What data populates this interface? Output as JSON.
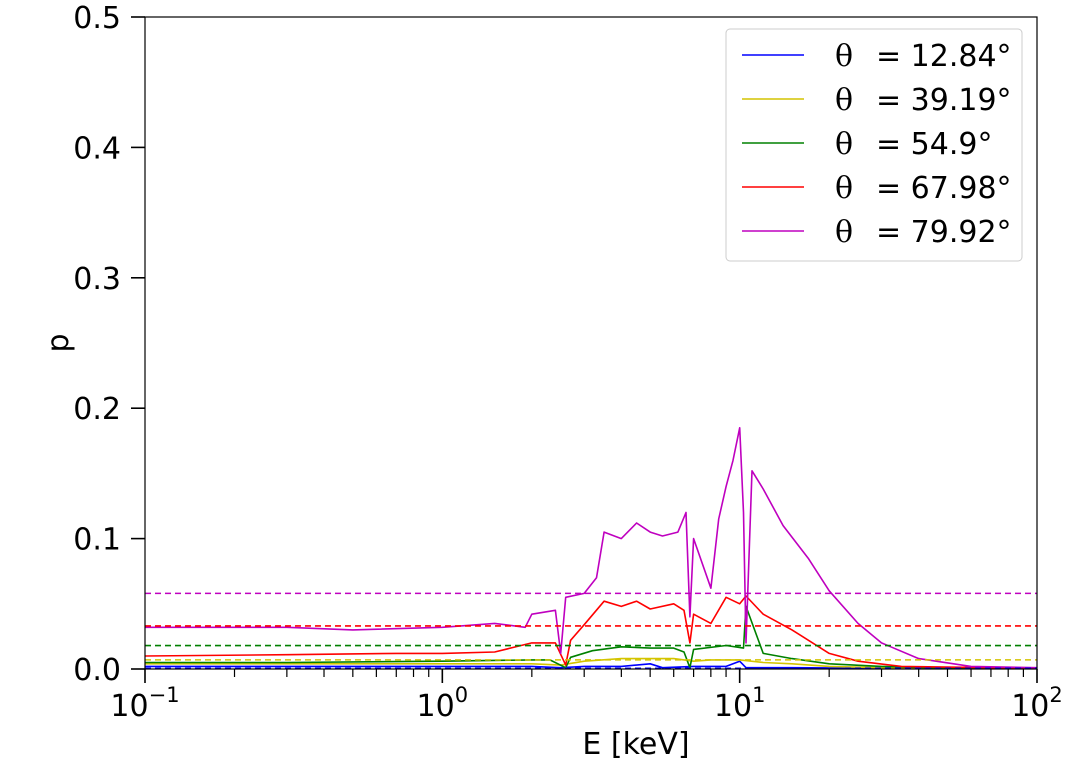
{
  "chart_data": {
    "type": "line",
    "xlabel": "E [keV]",
    "ylabel": "p",
    "xscale": "log",
    "xlim": [
      0.1,
      100
    ],
    "ylim": [
      0,
      0.5
    ],
    "grid": false,
    "legend_position": "top-right",
    "x_ticks": [
      {
        "value": 0.1,
        "base": "10",
        "exp": "−1"
      },
      {
        "value": 1,
        "base": "10",
        "exp": "0"
      },
      {
        "value": 10,
        "base": "10",
        "exp": "1"
      },
      {
        "value": 100,
        "base": "10",
        "exp": "2"
      }
    ],
    "y_ticks": [
      {
        "value": 0.0,
        "label": "0.0"
      },
      {
        "value": 0.1,
        "label": "0.1"
      },
      {
        "value": 0.2,
        "label": "0.2"
      },
      {
        "value": 0.3,
        "label": "0.3"
      },
      {
        "value": 0.4,
        "label": "0.4"
      },
      {
        "value": 0.5,
        "label": "0.5"
      }
    ],
    "series": [
      {
        "name": "θ = 12.84°",
        "legend_symbol": "θ",
        "legend_value": "= 12.84°",
        "color": "#0000ff",
        "mean_level": 0.0005,
        "points": [
          [
            0.1,
            0.002
          ],
          [
            0.2,
            0.002
          ],
          [
            0.5,
            0.002
          ],
          [
            1,
            0.002
          ],
          [
            2,
            0.002
          ],
          [
            2.5,
            0.001
          ],
          [
            3,
            0.002
          ],
          [
            4,
            0.002
          ],
          [
            5,
            0.004
          ],
          [
            5.5,
            0.001
          ],
          [
            7,
            0.002
          ],
          [
            9,
            0.002
          ],
          [
            10,
            0.006
          ],
          [
            10.5,
            0.001
          ],
          [
            15,
            0.001
          ],
          [
            30,
            0.0005
          ],
          [
            100,
            0.0005
          ]
        ]
      },
      {
        "name": "θ = 39.19°",
        "legend_symbol": "θ",
        "legend_value": "= 39.19°",
        "color": "#d4c400",
        "mean_level": 0.007,
        "points": [
          [
            0.1,
            0.004
          ],
          [
            0.3,
            0.004
          ],
          [
            1,
            0.004
          ],
          [
            2,
            0.004
          ],
          [
            2.5,
            0.003
          ],
          [
            3,
            0.006
          ],
          [
            4,
            0.008
          ],
          [
            5,
            0.008
          ],
          [
            6,
            0.008
          ],
          [
            7,
            0.006
          ],
          [
            8,
            0.007
          ],
          [
            10,
            0.007
          ],
          [
            12,
            0.005
          ],
          [
            15,
            0.004
          ],
          [
            20,
            0.002
          ],
          [
            30,
            0.001
          ],
          [
            100,
            0.0005
          ]
        ]
      },
      {
        "name": "θ = 54.9°",
        "legend_symbol": "θ",
        "legend_value": "= 54.9°",
        "color": "#008000",
        "mean_level": 0.018,
        "points": [
          [
            0.1,
            0.005
          ],
          [
            0.3,
            0.005
          ],
          [
            1,
            0.006
          ],
          [
            2,
            0.007
          ],
          [
            2.3,
            0.007
          ],
          [
            2.6,
            0.001
          ],
          [
            2.7,
            0.009
          ],
          [
            3.2,
            0.014
          ],
          [
            4,
            0.017
          ],
          [
            5,
            0.016
          ],
          [
            6,
            0.016
          ],
          [
            6.5,
            0.013
          ],
          [
            6.8,
            0.001
          ],
          [
            7,
            0.015
          ],
          [
            9,
            0.018
          ],
          [
            10.3,
            0.016
          ],
          [
            10.5,
            0.048
          ],
          [
            12,
            0.012
          ],
          [
            15,
            0.008
          ],
          [
            20,
            0.004
          ],
          [
            30,
            0.002
          ],
          [
            50,
            0.0005
          ],
          [
            100,
            0.0005
          ]
        ]
      },
      {
        "name": "θ = 67.98°",
        "legend_symbol": "θ",
        "legend_value": "= 67.98°",
        "color": "#ff0000",
        "mean_level": 0.033,
        "points": [
          [
            0.1,
            0.01
          ],
          [
            0.3,
            0.011
          ],
          [
            0.7,
            0.012
          ],
          [
            1,
            0.012
          ],
          [
            1.5,
            0.013
          ],
          [
            2,
            0.02
          ],
          [
            2.4,
            0.02
          ],
          [
            2.6,
            0.003
          ],
          [
            2.7,
            0.022
          ],
          [
            3,
            0.034
          ],
          [
            3.5,
            0.052
          ],
          [
            4,
            0.048
          ],
          [
            4.5,
            0.052
          ],
          [
            5,
            0.046
          ],
          [
            6,
            0.05
          ],
          [
            6.5,
            0.045
          ],
          [
            6.8,
            0.02
          ],
          [
            7,
            0.042
          ],
          [
            8,
            0.035
          ],
          [
            9,
            0.055
          ],
          [
            10,
            0.05
          ],
          [
            10.5,
            0.056
          ],
          [
            12,
            0.042
          ],
          [
            15,
            0.03
          ],
          [
            20,
            0.012
          ],
          [
            25,
            0.006
          ],
          [
            35,
            0.002
          ],
          [
            100,
            0.0005
          ]
        ]
      },
      {
        "name": "θ = 79.92°",
        "legend_symbol": "θ",
        "legend_value": "= 79.92°",
        "color": "#bf00bf",
        "mean_level": 0.058,
        "points": [
          [
            0.1,
            0.032
          ],
          [
            0.3,
            0.032
          ],
          [
            0.5,
            0.03
          ],
          [
            1,
            0.032
          ],
          [
            1.5,
            0.035
          ],
          [
            1.9,
            0.032
          ],
          [
            2,
            0.042
          ],
          [
            2.4,
            0.045
          ],
          [
            2.5,
            0.012
          ],
          [
            2.6,
            0.055
          ],
          [
            3,
            0.058
          ],
          [
            3.3,
            0.07
          ],
          [
            3.5,
            0.105
          ],
          [
            4,
            0.1
          ],
          [
            4.5,
            0.112
          ],
          [
            5,
            0.105
          ],
          [
            5.5,
            0.102
          ],
          [
            6.2,
            0.105
          ],
          [
            6.6,
            0.12
          ],
          [
            6.8,
            0.04
          ],
          [
            7,
            0.1
          ],
          [
            8,
            0.062
          ],
          [
            8.5,
            0.115
          ],
          [
            9,
            0.14
          ],
          [
            9.5,
            0.16
          ],
          [
            10,
            0.185
          ],
          [
            10.3,
            0.12
          ],
          [
            10.5,
            0.02
          ],
          [
            11,
            0.152
          ],
          [
            12,
            0.138
          ],
          [
            14,
            0.11
          ],
          [
            17,
            0.085
          ],
          [
            20,
            0.06
          ],
          [
            25,
            0.035
          ],
          [
            30,
            0.02
          ],
          [
            40,
            0.008
          ],
          [
            60,
            0.002
          ],
          [
            100,
            0.001
          ]
        ]
      }
    ]
  }
}
